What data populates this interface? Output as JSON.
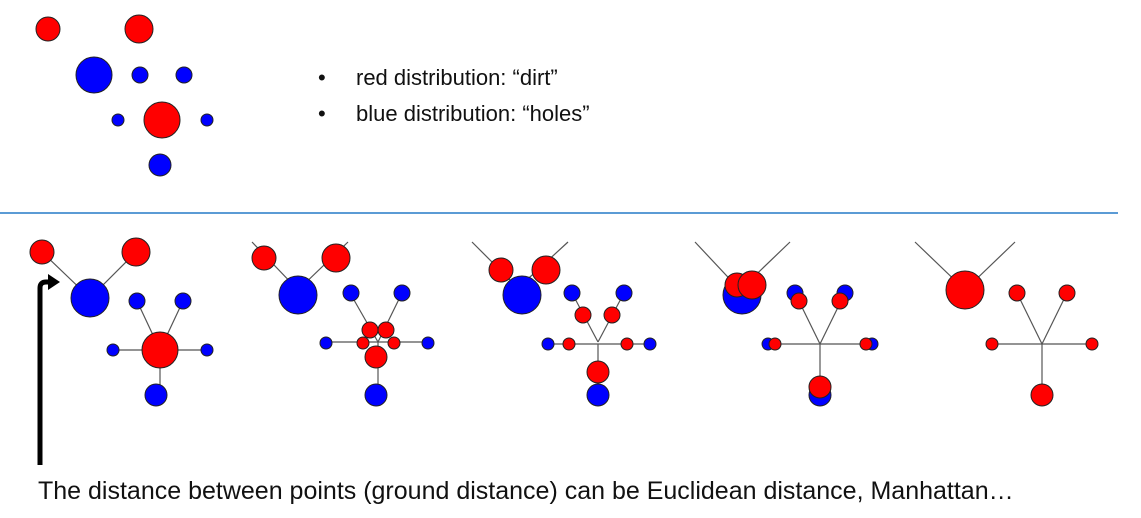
{
  "legend": {
    "bullets": [
      {
        "marker": "•",
        "text": "red distribution: “dirt”"
      },
      {
        "marker": "•",
        "text": "blue distribution: “holes”"
      }
    ]
  },
  "caption": "The distance between points (ground distance) can be Euclidean distance, Manhattan…",
  "colors": {
    "dirt": "#ff0000",
    "holes": "#0000ff",
    "stroke": "#222222",
    "line": "#555555",
    "divider": "#5b9bd5",
    "arrow": "#000000"
  },
  "figure": {
    "description_free": true,
    "panels": 5
  }
}
